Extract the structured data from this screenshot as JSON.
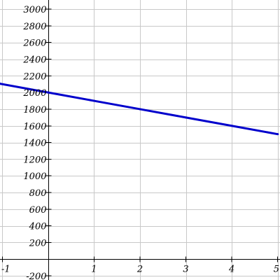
{
  "chart_data": {
    "type": "line",
    "title": "",
    "xlabel": "",
    "ylabel": "",
    "xlim": [
      -1.05,
      5.05
    ],
    "ylim": [
      -250,
      3110
    ],
    "x_ticks": [
      -1,
      1,
      2,
      3,
      4,
      5
    ],
    "x_tick_labels": [
      "-1",
      "1",
      "2",
      "3",
      "4",
      "5"
    ],
    "y_ticks": [
      -200,
      200,
      400,
      600,
      800,
      1000,
      1200,
      1400,
      1600,
      1800,
      2000,
      2200,
      2400,
      2600,
      2800,
      3000
    ],
    "y_tick_labels": [
      "-200",
      "200",
      "400",
      "600",
      "800",
      "1000",
      "1200",
      "1400",
      "1600",
      "1800",
      "2000",
      "2200",
      "2400",
      "2600",
      "2800",
      "3000"
    ],
    "x_grid": [
      -1,
      0,
      1,
      2,
      3,
      4,
      5
    ],
    "y_grid": [
      -200,
      0,
      200,
      400,
      600,
      800,
      1000,
      1200,
      1400,
      1600,
      1800,
      2000,
      2200,
      2400,
      2600,
      2800,
      3000
    ],
    "grid": true,
    "series": [
      {
        "color": "#0000cc",
        "x": [
          -1.05,
          0,
          1,
          2,
          3,
          4,
          5
        ],
        "y": [
          2105,
          2000,
          1900,
          1800,
          1700,
          1600,
          1500
        ]
      }
    ]
  }
}
